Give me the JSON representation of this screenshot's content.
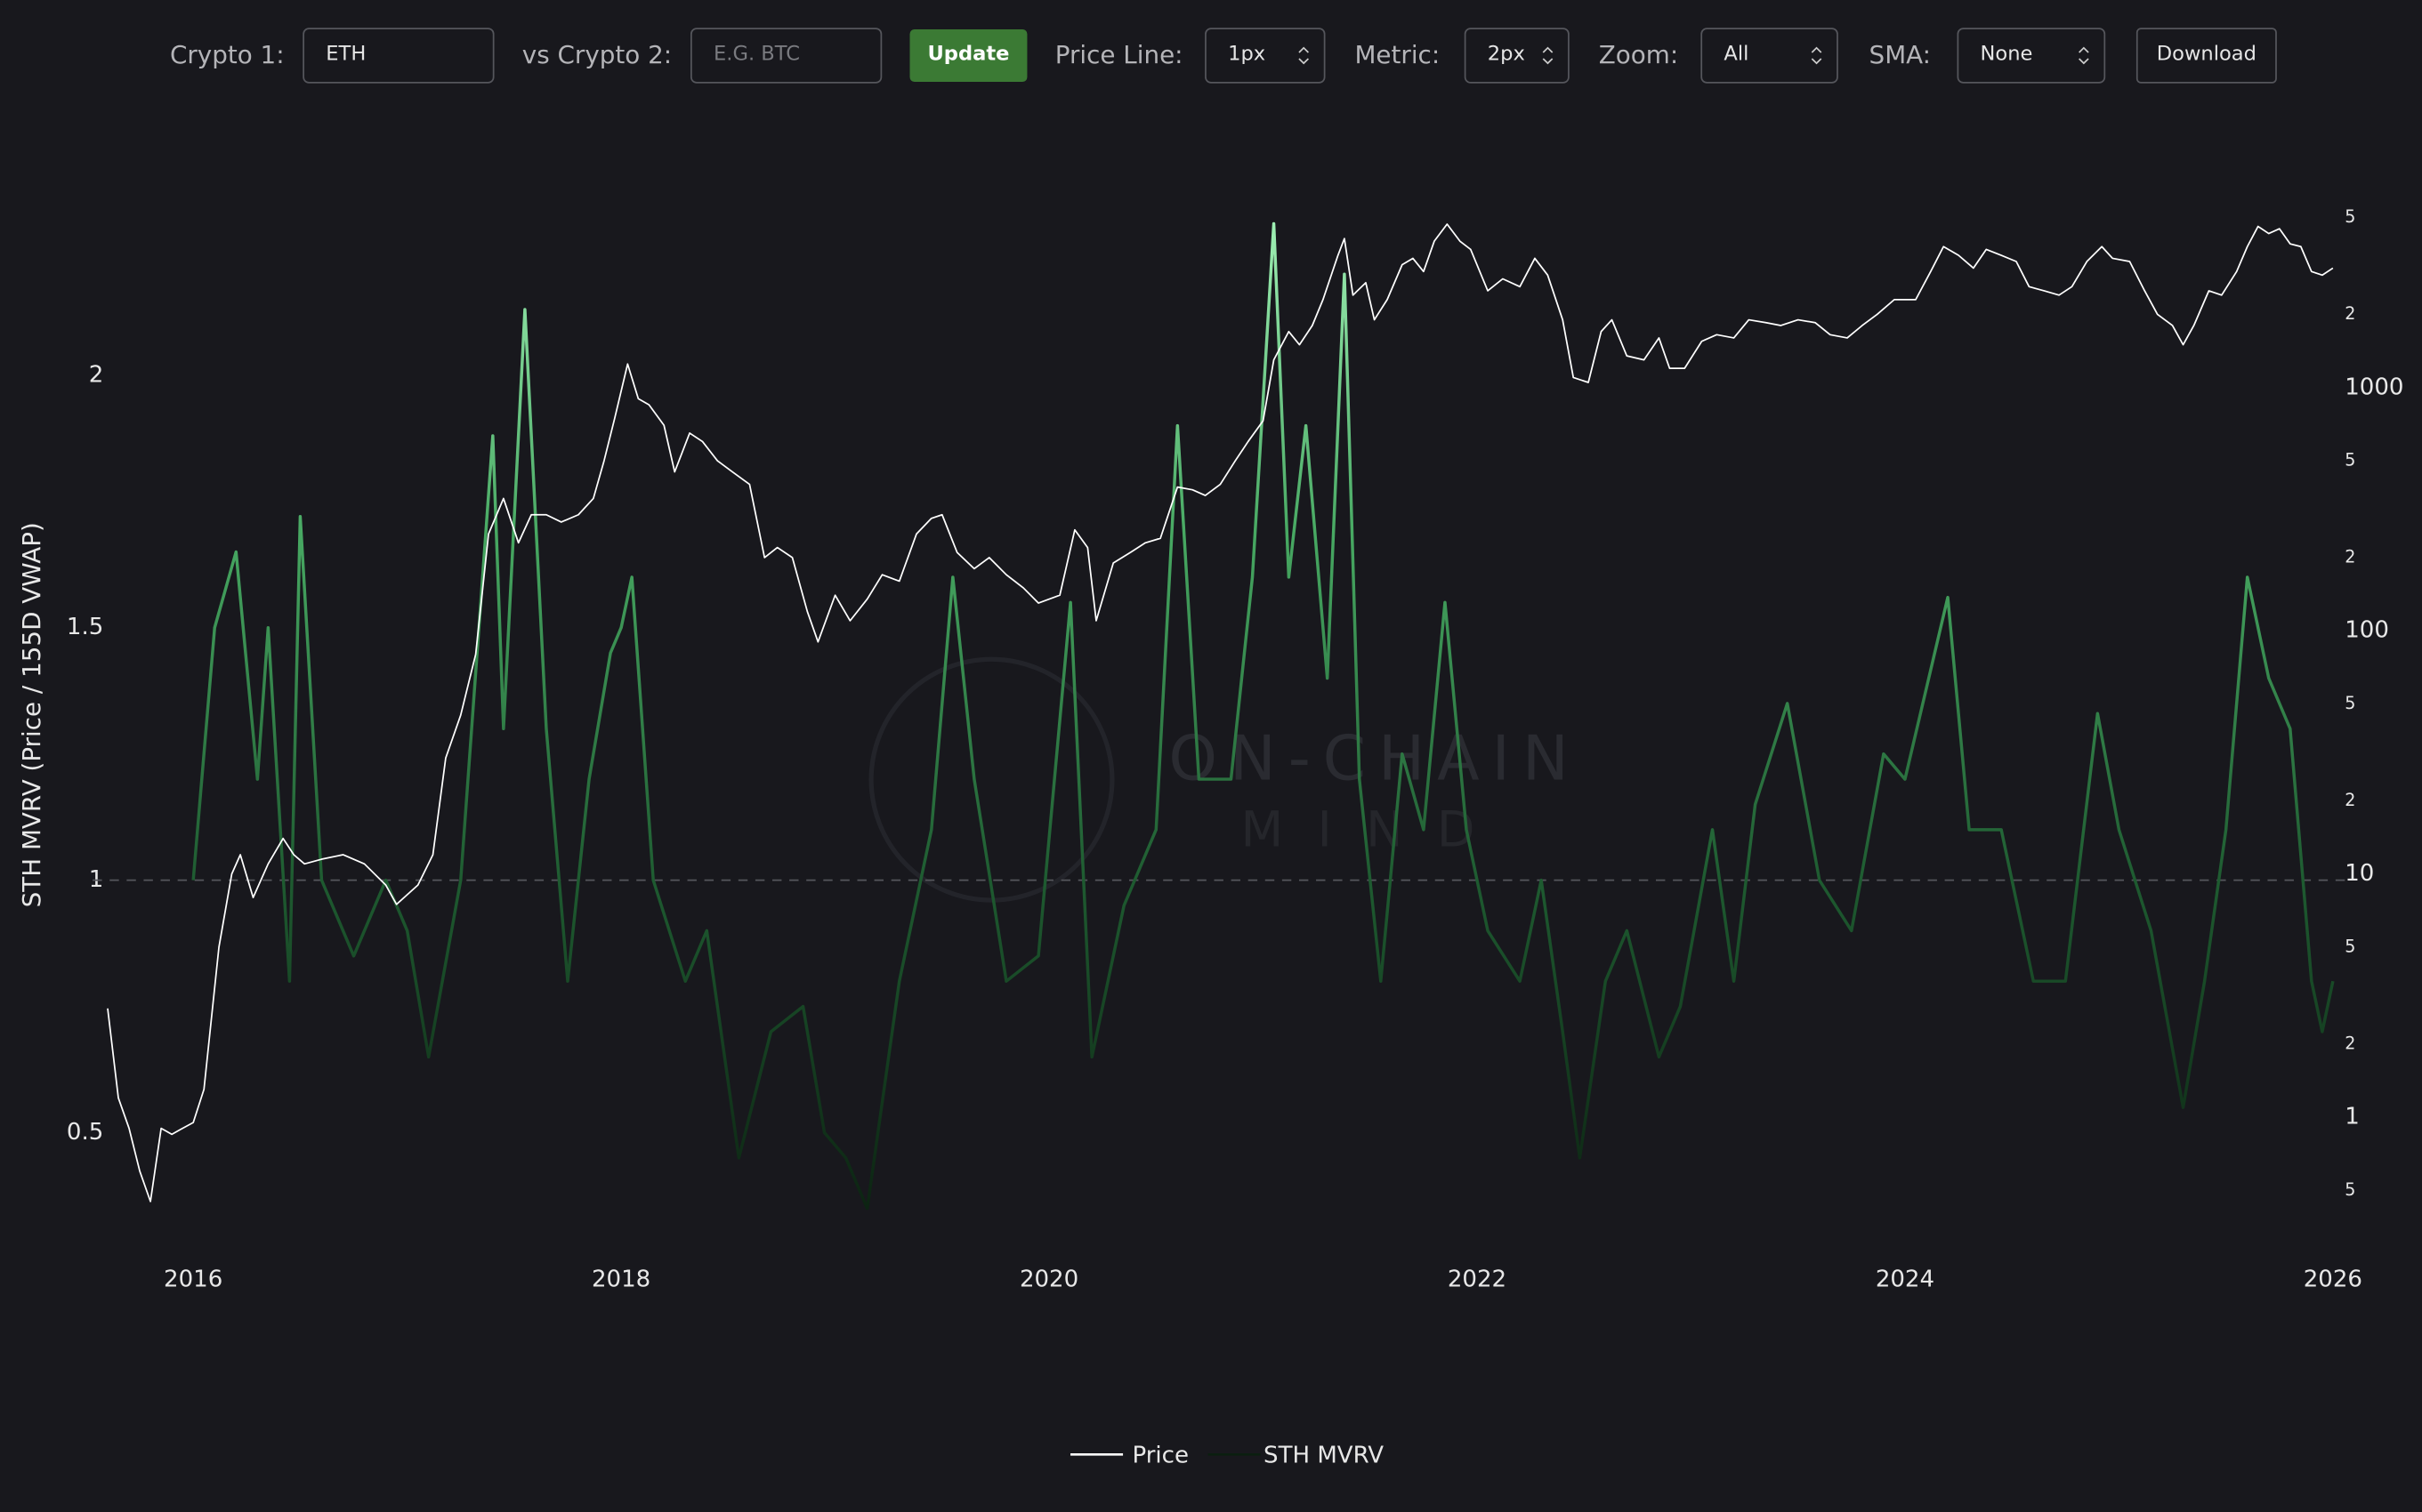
{
  "toolbar": {
    "crypto1_label": "Crypto 1:",
    "crypto1_value": "ETH",
    "crypto2_label": "vs Crypto 2:",
    "crypto2_placeholder": "E.G. BTC",
    "update": "Update",
    "price_line_label": "Price Line:",
    "price_line_value": "1px",
    "metric_label": "Metric:",
    "metric_value": "2px",
    "zoom_label": "Zoom:",
    "zoom_value": "All",
    "sma_label": "SMA:",
    "sma_value": "None",
    "download": "Download"
  },
  "chart_data": {
    "type": "line",
    "y_label": "STH MVRV (Price / 155D VWAP)",
    "watermark": [
      "ON-CHAIN",
      "MIND"
    ],
    "xlim": [
      2015.53,
      2026.07
    ],
    "xticks": [
      2016,
      2018,
      2020,
      2022,
      2024,
      2026
    ],
    "ylim": [
      0.297,
      2.376
    ],
    "yticks": [
      0.5,
      1,
      1.5,
      2
    ],
    "y2_scale": "log",
    "y2lim": [
      0.327,
      6790
    ],
    "y2ticks": [
      {
        "value": 0.5,
        "label": "5"
      },
      1,
      2,
      5,
      10,
      {
        "value": 20,
        "label": "2"
      },
      {
        "value": 50,
        "label": "5"
      },
      100,
      {
        "value": 200,
        "label": "2"
      },
      {
        "value": 500,
        "label": "5"
      },
      1000,
      {
        "value": 2000,
        "label": "2"
      },
      {
        "value": 5000,
        "label": "5"
      }
    ],
    "reference_line": 1,
    "legend": "bottom",
    "series": [
      {
        "name": "Price",
        "color": "#ffffff",
        "axis": "y2",
        "x": [
          2015.6,
          2015.65,
          2015.7,
          2015.75,
          2015.8,
          2015.85,
          2015.9,
          2015.95,
          2016.0,
          2016.05,
          2016.12,
          2016.18,
          2016.22,
          2016.28,
          2016.35,
          2016.42,
          2016.47,
          2016.52,
          2016.6,
          2016.7,
          2016.8,
          2016.9,
          2016.95,
          2017.05,
          2017.12,
          2017.18,
          2017.25,
          2017.32,
          2017.38,
          2017.45,
          2017.52,
          2017.58,
          2017.65,
          2017.72,
          2017.8,
          2017.87,
          2017.92,
          2017.97,
          2018.03,
          2018.08,
          2018.13,
          2018.2,
          2018.25,
          2018.32,
          2018.38,
          2018.45,
          2018.52,
          2018.6,
          2018.67,
          2018.73,
          2018.8,
          2018.87,
          2018.92,
          2019.0,
          2019.07,
          2019.15,
          2019.22,
          2019.3,
          2019.38,
          2019.45,
          2019.5,
          2019.57,
          2019.65,
          2019.72,
          2019.8,
          2019.88,
          2019.95,
          2020.05,
          2020.12,
          2020.18,
          2020.22,
          2020.3,
          2020.38,
          2020.45,
          2020.52,
          2020.6,
          2020.67,
          2020.73,
          2020.8,
          2020.87,
          2020.93,
          2021.0,
          2021.05,
          2021.12,
          2021.17,
          2021.23,
          2021.28,
          2021.35,
          2021.38,
          2021.42,
          2021.48,
          2021.52,
          2021.58,
          2021.65,
          2021.7,
          2021.75,
          2021.8,
          2021.86,
          2021.92,
          2021.97,
          2022.05,
          2022.12,
          2022.2,
          2022.27,
          2022.33,
          2022.4,
          2022.45,
          2022.52,
          2022.58,
          2022.63,
          2022.7,
          2022.78,
          2022.85,
          2022.9,
          2022.97,
          2023.05,
          2023.12,
          2023.2,
          2023.27,
          2023.35,
          2023.42,
          2023.5,
          2023.58,
          2023.65,
          2023.73,
          2023.8,
          2023.87,
          2023.95,
          2024.05,
          2024.12,
          2024.18,
          2024.25,
          2024.32,
          2024.38,
          2024.45,
          2024.52,
          2024.58,
          2024.65,
          2024.72,
          2024.78,
          2024.85,
          2024.92,
          2024.97,
          2025.05,
          2025.12,
          2025.18,
          2025.25,
          2025.3,
          2025.35,
          2025.42,
          2025.48,
          2025.55,
          2025.6,
          2025.65,
          2025.7,
          2025.75,
          2025.8,
          2025.85,
          2025.9,
          2025.95,
          2026.0
        ],
        "values": [
          2.8,
          1.2,
          0.9,
          0.6,
          0.45,
          0.9,
          0.85,
          0.9,
          0.95,
          1.3,
          5,
          10,
          12,
          8,
          11,
          14,
          12,
          11,
          11.5,
          12,
          11,
          9,
          7.5,
          9,
          12,
          30,
          45,
          80,
          250,
          350,
          230,
          300,
          300,
          280,
          300,
          350,
          500,
          750,
          1250,
          900,
          850,
          700,
          450,
          650,
          600,
          500,
          450,
          400,
          200,
          220,
          200,
          120,
          90,
          140,
          110,
          135,
          170,
          160,
          250,
          290,
          300,
          210,
          180,
          200,
          170,
          150,
          130,
          140,
          260,
          220,
          110,
          190,
          210,
          230,
          240,
          390,
          380,
          360,
          400,
          500,
          600,
          730,
          1300,
          1700,
          1500,
          1800,
          2300,
          3500,
          4100,
          2400,
          2700,
          1900,
          2300,
          3200,
          3400,
          3000,
          4000,
          4700,
          4000,
          3700,
          2500,
          2800,
          2600,
          3400,
          2900,
          1900,
          1100,
          1050,
          1700,
          1900,
          1350,
          1300,
          1600,
          1200,
          1200,
          1550,
          1650,
          1600,
          1900,
          1850,
          1800,
          1900,
          1850,
          1650,
          1600,
          1800,
          2000,
          2300,
          2300,
          3000,
          3800,
          3500,
          3100,
          3700,
          3500,
          3300,
          2600,
          2500,
          2400,
          2600,
          3300,
          3800,
          3400,
          3300,
          2500,
          2000,
          1800,
          1500,
          1800,
          2500,
          2400,
          3000,
          3800,
          4600,
          4300,
          4500,
          3900,
          3800,
          3000,
          2900,
          3100
        ]
      },
      {
        "name": "STH MVRV",
        "colors": [
          "#0b1f10",
          "#1e5a30",
          "#47a862",
          "#a8f7bd"
        ],
        "x": [
          2016.0,
          2016.1,
          2016.2,
          2016.3,
          2016.35,
          2016.45,
          2016.5,
          2016.6,
          2016.75,
          2016.9,
          2017.0,
          2017.1,
          2017.25,
          2017.4,
          2017.45,
          2017.55,
          2017.65,
          2017.75,
          2017.85,
          2017.95,
          2018.0,
          2018.05,
          2018.15,
          2018.3,
          2018.4,
          2018.55,
          2018.7,
          2018.85,
          2018.95,
          2019.05,
          2019.15,
          2019.3,
          2019.45,
          2019.55,
          2019.65,
          2019.8,
          2019.95,
          2020.1,
          2020.2,
          2020.35,
          2020.5,
          2020.6,
          2020.7,
          2020.85,
          2020.95,
          2021.05,
          2021.12,
          2021.2,
          2021.3,
          2021.38,
          2021.45,
          2021.55,
          2021.65,
          2021.75,
          2021.85,
          2021.95,
          2022.05,
          2022.2,
          2022.3,
          2022.4,
          2022.48,
          2022.6,
          2022.7,
          2022.85,
          2022.95,
          2023.1,
          2023.2,
          2023.3,
          2023.45,
          2023.6,
          2023.75,
          2023.9,
          2024.0,
          2024.2,
          2024.3,
          2024.45,
          2024.6,
          2024.75,
          2024.9,
          2025.0,
          2025.15,
          2025.3,
          2025.4,
          2025.5,
          2025.6,
          2025.7,
          2025.8,
          2025.9,
          2025.95,
          2026.0
        ],
        "values": [
          1.0,
          1.5,
          1.65,
          1.2,
          1.5,
          0.8,
          1.72,
          1.0,
          0.85,
          1.0,
          0.9,
          0.65,
          1.0,
          1.88,
          1.3,
          2.13,
          1.3,
          0.8,
          1.2,
          1.45,
          1.5,
          1.6,
          1.0,
          0.8,
          0.9,
          0.45,
          0.7,
          0.75,
          0.5,
          0.45,
          0.35,
          0.8,
          1.1,
          1.6,
          1.2,
          0.8,
          0.85,
          1.55,
          0.65,
          0.95,
          1.1,
          1.9,
          1.2,
          1.2,
          1.6,
          2.3,
          1.6,
          1.9,
          1.4,
          2.2,
          1.2,
          0.8,
          1.25,
          1.1,
          1.55,
          1.1,
          0.9,
          0.8,
          1.0,
          0.7,
          0.45,
          0.8,
          0.9,
          0.65,
          0.75,
          1.1,
          0.8,
          1.15,
          1.35,
          1.0,
          0.9,
          1.25,
          1.2,
          1.56,
          1.1,
          1.1,
          0.8,
          0.8,
          1.33,
          1.1,
          0.9,
          0.55,
          0.8,
          1.1,
          1.6,
          1.4,
          1.3,
          0.8,
          0.7,
          0.8
        ]
      }
    ]
  }
}
